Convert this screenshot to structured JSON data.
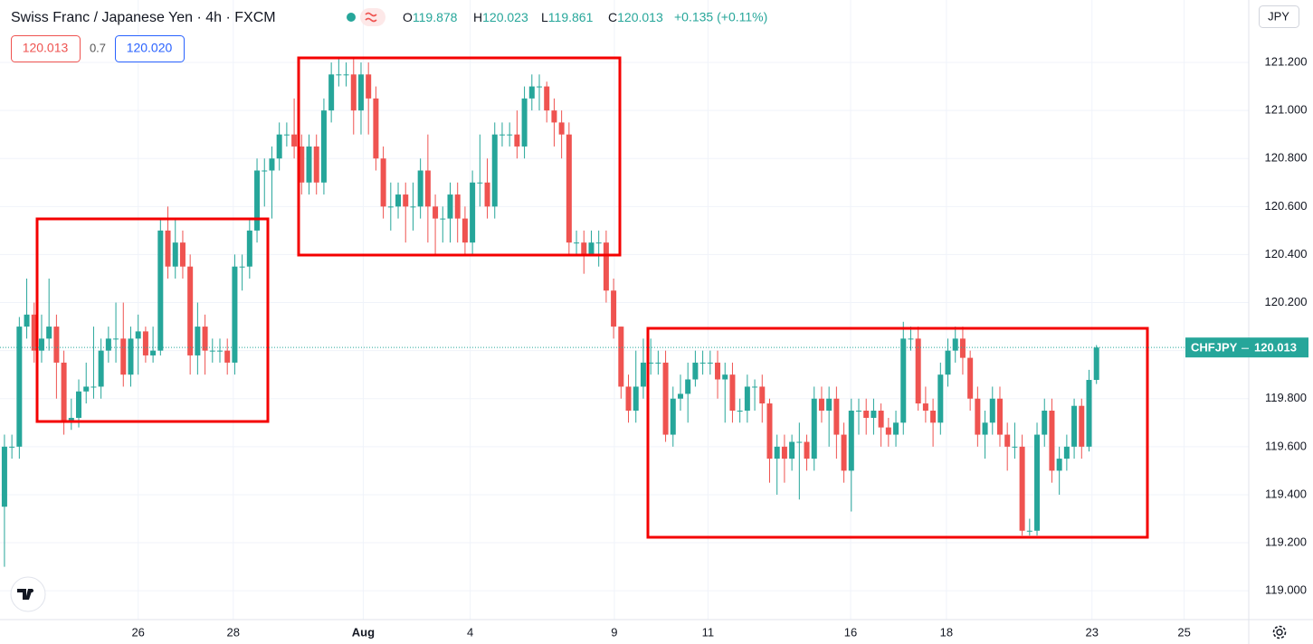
{
  "chart_data": {
    "type": "candlestick",
    "title": "Swiss Franc / Japanese Yen · 4h · FXCM",
    "ohlc_prefixes": [
      "O",
      "H",
      "L",
      "C"
    ],
    "change": "+0.135 (+0.11%)",
    "bid": "120.013",
    "spread": "0.7",
    "ask": "120.020",
    "currency": "JPY",
    "symbol": "CHFJPY",
    "up_color": "#26a69a",
    "down_color": "#ef5350",
    "ylim": [
      118.88,
      121.46
    ],
    "yticks": [
      {
        "value": 119.0,
        "label": "119.000"
      },
      {
        "value": 119.2,
        "label": "119.200"
      },
      {
        "value": 119.4,
        "label": "119.400"
      },
      {
        "value": 119.6,
        "label": "119.600"
      },
      {
        "value": 119.8,
        "label": "119.800"
      },
      {
        "value": 120.0,
        "label": "120.000"
      },
      {
        "value": 120.2,
        "label": "120.200"
      },
      {
        "value": 120.4,
        "label": "120.400"
      },
      {
        "value": 120.6,
        "label": "120.600"
      },
      {
        "value": 120.8,
        "label": "120.800"
      },
      {
        "value": 121.0,
        "label": "121.000"
      },
      {
        "value": 121.2,
        "label": "121.200"
      }
    ],
    "xlim": [
      -0.6,
      167.5
    ],
    "xticks": [
      {
        "value": 18,
        "label": "26"
      },
      {
        "value": 30.8,
        "label": "28"
      },
      {
        "value": 48.3,
        "label": "Aug"
      },
      {
        "value": 62.7,
        "label": "4"
      },
      {
        "value": 82.1,
        "label": "9"
      },
      {
        "value": 94.7,
        "label": "11"
      },
      {
        "value": 113.9,
        "label": "16"
      },
      {
        "value": 126.8,
        "label": "18"
      },
      {
        "value": 146.4,
        "label": "23"
      },
      {
        "value": 158.8,
        "label": "25"
      }
    ],
    "grid": true,
    "open": [
      119.35,
      119.6,
      119.6,
      120.1,
      120.15,
      120.0,
      120.05,
      120.1,
      119.95,
      119.7,
      119.72,
      119.83,
      119.85,
      119.85,
      120.0,
      120.05,
      120.05,
      119.9,
      120.05,
      120.08,
      119.98,
      120.0,
      120.5,
      120.35,
      120.45,
      120.35,
      119.98,
      120.1,
      120.0,
      120.0,
      120.0,
      119.95,
      120.35,
      120.35,
      120.5,
      120.75,
      120.75,
      120.8,
      120.9,
      120.9,
      120.85,
      120.7,
      120.85,
      120.7,
      121.0,
      121.15,
      121.15,
      121.15,
      121.0,
      121.15,
      121.05,
      120.8,
      120.6,
      120.6,
      120.65,
      120.6,
      120.6,
      120.75,
      120.6,
      120.55,
      120.55,
      120.65,
      120.55,
      120.45,
      120.7,
      120.7,
      120.6,
      120.9,
      120.9,
      120.9,
      120.85,
      121.05,
      121.1,
      121.1,
      121.0,
      120.95,
      120.9,
      120.45,
      120.45,
      120.4,
      120.45,
      120.45,
      120.25,
      120.1,
      119.85,
      119.75,
      119.85,
      119.95,
      119.95,
      119.95,
      119.65,
      119.8,
      119.82,
      119.88,
      119.95,
      119.95,
      119.95,
      119.88,
      119.9,
      119.75,
      119.75,
      119.85,
      119.85,
      119.78,
      119.55,
      119.6,
      119.55,
      119.62,
      119.62,
      119.55,
      119.8,
      119.75,
      119.8,
      119.65,
      119.5,
      119.75,
      119.75,
      119.72,
      119.75,
      119.68,
      119.65,
      119.7,
      120.05,
      120.05,
      119.78,
      119.75,
      119.7,
      119.9,
      120.0,
      120.05,
      119.97,
      119.8,
      119.65,
      119.7,
      119.8,
      119.65,
      119.6,
      119.6,
      119.25,
      119.25,
      119.65,
      119.75,
      119.5,
      119.55,
      119.6,
      119.77,
      119.6,
      119.878
    ],
    "high": [
      119.65,
      119.65,
      120.14,
      120.3,
      120.2,
      120.15,
      120.3,
      120.15,
      120.0,
      119.8,
      119.88,
      119.95,
      120.1,
      120.05,
      120.1,
      120.2,
      120.2,
      120.1,
      120.15,
      120.1,
      120.1,
      120.55,
      120.6,
      120.55,
      120.5,
      120.4,
      120.2,
      120.15,
      120.05,
      120.05,
      120.05,
      120.4,
      120.4,
      120.55,
      120.8,
      120.8,
      120.85,
      120.95,
      120.95,
      121.05,
      120.9,
      120.9,
      120.9,
      121.05,
      121.2,
      121.22,
      121.2,
      121.22,
      121.2,
      121.2,
      121.1,
      120.85,
      120.7,
      120.7,
      120.7,
      120.7,
      120.8,
      120.9,
      120.65,
      120.6,
      120.7,
      120.7,
      120.6,
      120.75,
      120.9,
      120.8,
      120.95,
      120.95,
      120.95,
      121.0,
      121.1,
      121.15,
      121.15,
      121.12,
      121.05,
      121.0,
      120.95,
      120.5,
      120.5,
      120.5,
      120.5,
      120.5,
      120.3,
      120.1,
      119.9,
      120.0,
      120.05,
      120.05,
      120.0,
      120.0,
      119.85,
      119.9,
      119.95,
      120.0,
      120.0,
      120.0,
      120.0,
      119.95,
      119.95,
      119.8,
      119.9,
      119.88,
      119.9,
      119.8,
      119.65,
      119.65,
      119.65,
      119.7,
      119.65,
      119.85,
      119.85,
      119.85,
      119.85,
      119.7,
      119.8,
      119.8,
      119.8,
      119.8,
      119.78,
      119.72,
      119.75,
      120.12,
      120.1,
      120.1,
      119.85,
      119.8,
      119.95,
      120.05,
      120.1,
      120.1,
      120.0,
      119.85,
      119.75,
      119.85,
      119.85,
      119.7,
      119.7,
      119.65,
      119.3,
      119.7,
      119.8,
      119.8,
      119.6,
      119.65,
      119.8,
      119.8,
      119.92,
      120.023
    ],
    "low": [
      119.1,
      119.55,
      119.55,
      120.05,
      119.95,
      119.95,
      120.0,
      119.8,
      119.65,
      119.67,
      119.68,
      119.78,
      119.8,
      119.8,
      119.95,
      119.95,
      119.85,
      119.85,
      119.9,
      119.95,
      119.95,
      119.98,
      120.3,
      120.3,
      120.3,
      119.9,
      119.9,
      119.9,
      119.95,
      119.95,
      119.9,
      119.9,
      120.25,
      120.3,
      120.45,
      120.6,
      120.55,
      120.75,
      120.85,
      120.8,
      120.65,
      120.65,
      120.65,
      120.65,
      120.95,
      121.1,
      121.1,
      120.9,
      120.9,
      120.9,
      120.75,
      120.55,
      120.5,
      120.55,
      120.45,
      120.5,
      120.55,
      120.45,
      120.4,
      120.45,
      120.45,
      120.45,
      120.4,
      120.4,
      120.6,
      120.55,
      120.55,
      120.85,
      120.85,
      120.8,
      120.8,
      121.0,
      121.0,
      120.95,
      120.85,
      120.8,
      120.4,
      120.4,
      120.32,
      120.4,
      120.35,
      120.2,
      120.05,
      119.8,
      119.7,
      119.7,
      119.8,
      119.9,
      119.9,
      119.62,
      119.6,
      119.75,
      119.7,
      119.85,
      119.9,
      119.9,
      119.8,
      119.7,
      119.7,
      119.7,
      119.7,
      119.75,
      119.7,
      119.45,
      119.4,
      119.45,
      119.5,
      119.38,
      119.5,
      119.5,
      119.7,
      119.6,
      119.55,
      119.45,
      119.33,
      119.65,
      119.65,
      119.65,
      119.6,
      119.6,
      119.6,
      119.65,
      120.0,
      119.75,
      119.7,
      119.6,
      119.65,
      119.85,
      119.95,
      119.9,
      119.75,
      119.6,
      119.55,
      119.65,
      119.6,
      119.5,
      119.55,
      119.23,
      119.23,
      119.23,
      119.6,
      119.45,
      119.4,
      119.5,
      119.55,
      119.55,
      119.58,
      119.861
    ],
    "close": [
      119.6,
      119.6,
      120.1,
      120.15,
      120.0,
      120.05,
      120.1,
      119.95,
      119.7,
      119.72,
      119.83,
      119.85,
      119.85,
      120.0,
      120.05,
      120.05,
      119.9,
      120.05,
      120.08,
      119.98,
      120.0,
      120.5,
      120.35,
      120.45,
      120.35,
      119.98,
      120.1,
      120.0,
      120.0,
      120.0,
      119.95,
      120.35,
      120.35,
      120.5,
      120.75,
      120.75,
      120.8,
      120.9,
      120.9,
      120.85,
      120.7,
      120.85,
      120.7,
      121.0,
      121.15,
      121.15,
      121.15,
      121.0,
      121.15,
      121.05,
      120.8,
      120.6,
      120.6,
      120.65,
      120.6,
      120.6,
      120.75,
      120.6,
      120.55,
      120.55,
      120.65,
      120.55,
      120.45,
      120.7,
      120.7,
      120.6,
      120.9,
      120.9,
      120.9,
      120.85,
      121.05,
      121.1,
      121.1,
      121.0,
      120.95,
      120.9,
      120.45,
      120.45,
      120.4,
      120.45,
      120.45,
      120.25,
      120.1,
      119.85,
      119.75,
      119.85,
      119.95,
      119.95,
      119.95,
      119.65,
      119.8,
      119.82,
      119.88,
      119.95,
      119.95,
      119.95,
      119.88,
      119.9,
      119.75,
      119.75,
      119.85,
      119.85,
      119.78,
      119.55,
      119.6,
      119.55,
      119.62,
      119.62,
      119.55,
      119.8,
      119.75,
      119.8,
      119.65,
      119.5,
      119.75,
      119.75,
      119.72,
      119.75,
      119.68,
      119.65,
      119.7,
      120.05,
      120.05,
      119.78,
      119.75,
      119.7,
      119.9,
      120.0,
      120.05,
      119.97,
      119.8,
      119.65,
      119.7,
      119.8,
      119.65,
      119.6,
      119.6,
      119.25,
      119.25,
      119.65,
      119.75,
      119.5,
      119.55,
      119.6,
      119.77,
      119.6,
      119.878,
      120.013
    ]
  }
}
